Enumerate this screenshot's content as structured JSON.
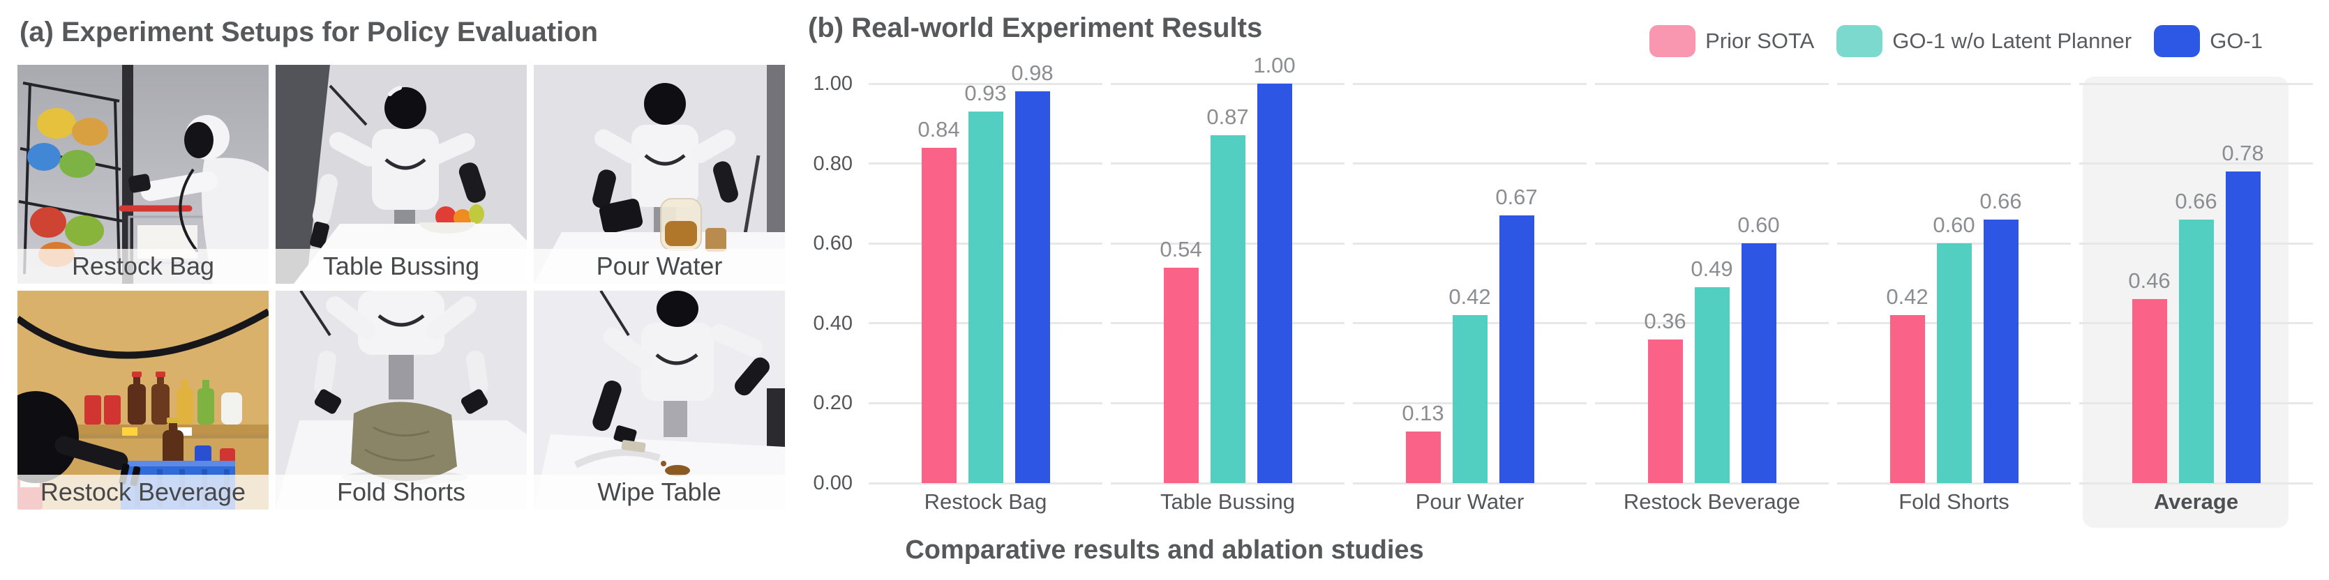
{
  "left_panel": {
    "title": "(a) Experiment Setups for Policy Evaluation",
    "tiles": [
      {
        "label": "Restock Bag"
      },
      {
        "label": "Table Bussing"
      },
      {
        "label": "Pour Water"
      },
      {
        "label": "Restock Beverage"
      },
      {
        "label": "Fold Shorts"
      },
      {
        "label": "Wipe Table"
      }
    ]
  },
  "right_panel": {
    "title": "(b) Real-world Experiment Results",
    "legend": [
      {
        "label": "Prior SOTA",
        "color": "#F996B0"
      },
      {
        "label": "GO-1 w/o Latent Planner",
        "color": "#7BD9CD"
      },
      {
        "label": "GO-1",
        "color": "#2D57E5"
      }
    ],
    "caption": "Comparative results and ablation studies"
  },
  "chart_data": {
    "type": "bar",
    "title": "(b) Real-world Experiment Results",
    "categories": [
      "Restock Bag",
      "Table Bussing",
      "Pour Water",
      "Restock Beverage",
      "Fold Shorts",
      "Average"
    ],
    "series": [
      {
        "name": "Prior SOTA",
        "color": "#FB6288",
        "values": [
          0.84,
          0.54,
          0.13,
          0.36,
          0.42,
          0.46
        ],
        "labels": [
          "0.84",
          "0.54",
          "0.13",
          "0.36",
          "0.42",
          "0.46"
        ]
      },
      {
        "name": "GO-1 w/o Latent Planner",
        "color": "#52CFC1",
        "values": [
          0.93,
          0.87,
          0.42,
          0.49,
          0.6,
          0.66
        ],
        "labels": [
          "0.93",
          "0.87",
          "0.42",
          "0.49",
          "0.60",
          "0.66"
        ]
      },
      {
        "name": "GO-1",
        "color": "#2D56E4",
        "values": [
          0.98,
          1.0,
          0.67,
          0.6,
          0.66,
          0.78
        ],
        "labels": [
          "0.98",
          "1.00",
          "0.67",
          "0.60",
          "0.66",
          "0.78"
        ]
      }
    ],
    "yticks": [
      {
        "label": "0.00",
        "value": 0.0
      },
      {
        "label": "0.20",
        "value": 0.2
      },
      {
        "label": "0.40",
        "value": 0.4
      },
      {
        "label": "0.60",
        "value": 0.6
      },
      {
        "label": "0.80",
        "value": 0.8
      },
      {
        "label": "1.00",
        "value": 1.0
      }
    ],
    "ylim": [
      0,
      1
    ],
    "grid": true,
    "grid_color": "#E7E7E8",
    "legend_position": "top-right",
    "highlight_category": "Average",
    "highlight_color": "#F3F3F4",
    "xlabel": "",
    "ylabel": ""
  }
}
